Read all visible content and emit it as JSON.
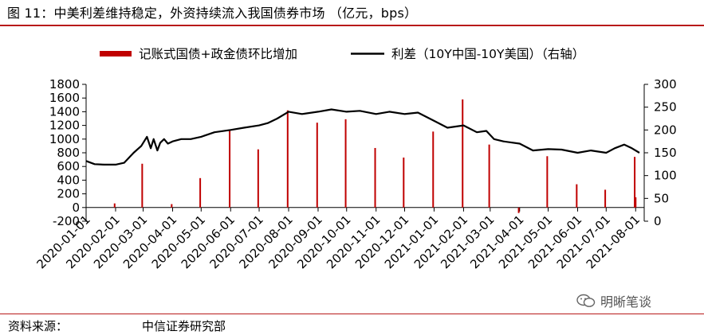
{
  "header": {
    "title": "图 11：中美利差维持稳定，外资持续流入我国债券市场 （亿元，bps）"
  },
  "footer": {
    "source_label": "资料来源：",
    "source_value": "中信证券研究部"
  },
  "watermark": {
    "text": "明晰笔谈",
    "icon": "wechat-icon"
  },
  "colors": {
    "bar": "#c00000",
    "line": "#000000",
    "rule": "#b81a1a"
  },
  "chart_data": {
    "type": "bar+line",
    "legend": {
      "bar_label": "记账式国债+政金债环比增加",
      "line_label": "利差（10Y中国-10Y美国）（右轴）",
      "placement": "top-center"
    },
    "x_tick_labels": [
      "2020-01-01",
      "2020-02-01",
      "2020-03-01",
      "2020-04-01",
      "2020-05-01",
      "2020-06-01",
      "2020-07-01",
      "2020-08-01",
      "2020-09-01",
      "2020-10-01",
      "2020-11-01",
      "2020-12-01",
      "2021-01-01",
      "2021-02-01",
      "2021-03-01",
      "2021-04-01",
      "2021-05-01",
      "2021-06-01",
      "2021-07-01",
      "2021-08-01"
    ],
    "xlim": [
      "2020-01-01",
      "2021-08-10"
    ],
    "left_axis": {
      "ylim": [
        -200,
        1800
      ],
      "ticks": [
        -200,
        0,
        200,
        400,
        600,
        800,
        1000,
        1200,
        1400,
        1600,
        1800
      ]
    },
    "right_axis": {
      "ylim": [
        0,
        300
      ],
      "ticks": [
        0,
        50,
        100,
        150,
        200,
        250,
        300
      ]
    },
    "grid": false,
    "bars": {
      "name": "记账式国债+政金债环比增加",
      "axis": "left",
      "x": [
        "2020-01-31",
        "2020-02-29",
        "2020-03-31",
        "2020-04-30",
        "2020-05-31",
        "2020-06-30",
        "2020-07-31",
        "2020-08-31",
        "2020-09-30",
        "2020-10-31",
        "2020-11-30",
        "2020-12-31",
        "2021-01-31",
        "2021-02-28",
        "2021-03-31",
        "2021-04-30",
        "2021-05-31",
        "2021-06-30",
        "2021-07-31",
        "2021-08-01"
      ],
      "values": [
        60,
        640,
        50,
        430,
        1140,
        850,
        1420,
        1240,
        1290,
        870,
        730,
        1110,
        1580,
        920,
        -80,
        750,
        340,
        260,
        740,
        150
      ]
    },
    "line": {
      "name": "利差（10Y中国-10Y美国）",
      "axis": "right",
      "x": [
        "2020-01-01",
        "2020-01-10",
        "2020-01-20",
        "2020-02-01",
        "2020-02-10",
        "2020-02-20",
        "2020-02-28",
        "2020-03-05",
        "2020-03-09",
        "2020-03-12",
        "2020-03-16",
        "2020-03-19",
        "2020-03-23",
        "2020-03-27",
        "2020-04-01",
        "2020-04-10",
        "2020-04-20",
        "2020-05-01",
        "2020-05-15",
        "2020-06-01",
        "2020-06-15",
        "2020-07-01",
        "2020-07-10",
        "2020-07-20",
        "2020-08-01",
        "2020-08-15",
        "2020-09-01",
        "2020-09-15",
        "2020-10-01",
        "2020-10-15",
        "2020-11-01",
        "2020-11-15",
        "2020-12-01",
        "2020-12-15",
        "2021-01-01",
        "2021-01-15",
        "2021-02-01",
        "2021-02-15",
        "2021-02-25",
        "2021-03-05",
        "2021-03-15",
        "2021-04-01",
        "2021-04-15",
        "2021-05-01",
        "2021-05-15",
        "2021-06-01",
        "2021-06-15",
        "2021-07-01",
        "2021-07-10",
        "2021-07-20",
        "2021-07-28",
        "2021-08-05"
      ],
      "values": [
        132,
        125,
        124,
        124,
        128,
        150,
        165,
        185,
        160,
        180,
        155,
        172,
        180,
        170,
        175,
        180,
        180,
        185,
        195,
        200,
        205,
        210,
        215,
        225,
        240,
        235,
        240,
        245,
        240,
        242,
        235,
        240,
        235,
        238,
        220,
        205,
        210,
        195,
        198,
        180,
        175,
        170,
        155,
        158,
        157,
        150,
        155,
        150,
        160,
        168,
        160,
        150
      ]
    }
  }
}
